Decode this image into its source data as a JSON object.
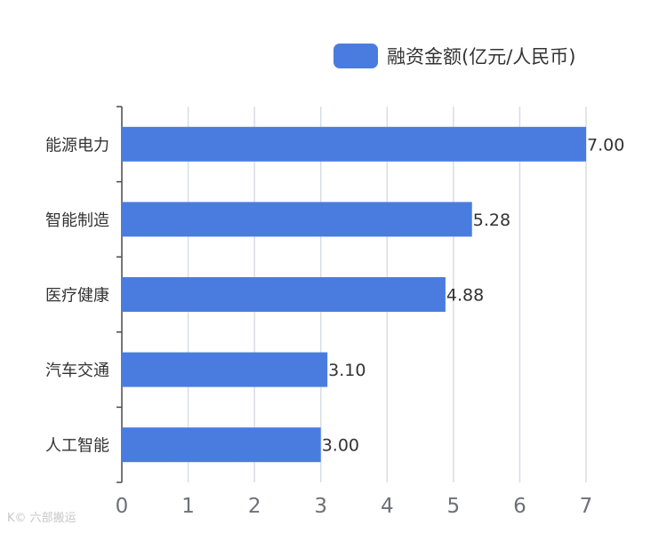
{
  "colors": {
    "bar": "#4A7CE0",
    "grid": "#d8dde6",
    "axis": "#4a4a4a",
    "tick_text": "#6e7079",
    "label_text": "#333333",
    "watermark": "#c7c7c7"
  },
  "watermark": "K© 六部搬运",
  "chart_data": {
    "type": "bar",
    "orientation": "horizontal",
    "categories": [
      "能源电力",
      "智能制造",
      "医疗健康",
      "汽车交通",
      "人工智能"
    ],
    "series": [
      {
        "name": "融资金额(亿元/人民币)",
        "values": [
          7.0,
          5.28,
          4.88,
          3.1,
          3.0
        ]
      }
    ],
    "value_labels": [
      "7.00",
      "5.28",
      "4.88",
      "3.10",
      "3.00"
    ],
    "xlim": [
      0,
      7
    ],
    "x_ticks": [
      0,
      1,
      2,
      3,
      4,
      5,
      6,
      7
    ],
    "grid": true,
    "legend_position": "top-right"
  }
}
